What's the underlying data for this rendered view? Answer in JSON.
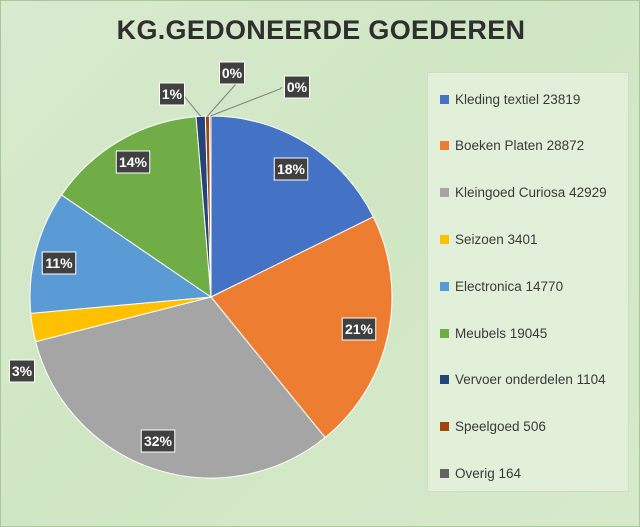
{
  "chart_data": {
    "type": "pie",
    "title": "KG.GEDONEERDE GOEDEREN",
    "legend_position": "right",
    "slices": [
      {
        "legend": "Kleding textiel 23819",
        "value": 23819,
        "label": "18%",
        "color": "#4472C4"
      },
      {
        "legend": "Boeken Platen 28872",
        "value": 28872,
        "label": "21%",
        "color": "#ED7D31"
      },
      {
        "legend": "Kleingoed Curiosa 42929",
        "value": 42929,
        "label": "32%",
        "color": "#A5A5A5"
      },
      {
        "legend": "Seizoen 3401",
        "value": 3401,
        "label": "3%",
        "color": "#FFC000"
      },
      {
        "legend": "Electronica 14770",
        "value": 14770,
        "label": "11%",
        "color": "#5B9BD5"
      },
      {
        "legend": "Meubels 19045",
        "value": 19045,
        "label": "14%",
        "color": "#70AD47"
      },
      {
        "legend": "Vervoer onderdelen 1104",
        "value": 1104,
        "label": "1%",
        "color": "#264478"
      },
      {
        "legend": "Speelgoed 506",
        "value": 506,
        "label": "0%",
        "color": "#9E480E"
      },
      {
        "legend": "Overig 164",
        "value": 164,
        "label": "0%",
        "color": "#636363"
      }
    ]
  }
}
